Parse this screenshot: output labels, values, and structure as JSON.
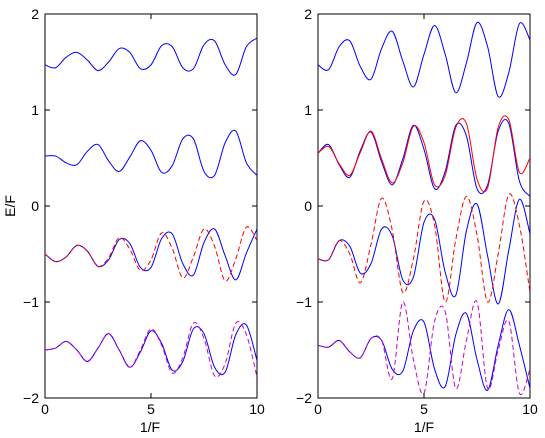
{
  "chart_data": [
    {
      "type": "line",
      "panel": "left",
      "title": "",
      "xlabel": "1/F",
      "ylabel": "E/F",
      "xlim": [
        0,
        10
      ],
      "ylim": [
        -2,
        2
      ],
      "xticks": [
        0,
        5,
        10
      ],
      "xtick_labels": [
        "0",
        "5",
        "10"
      ],
      "yticks": [
        -2,
        -1,
        0,
        1,
        2
      ],
      "ytick_labels": [
        "−2",
        "−1",
        "0",
        "1",
        "2"
      ],
      "grid": false,
      "legend": "none",
      "series": [
        {
          "style": "solid",
          "color": "#0000ff",
          "x": [
            0,
            0.5,
            1,
            1.5,
            2,
            2.5,
            3,
            3.5,
            4,
            4.5,
            5,
            5.5,
            6,
            6.5,
            7,
            7.5,
            8,
            8.5,
            9,
            9.5,
            10
          ],
          "y": [
            1.47,
            1.44,
            1.55,
            1.6,
            1.52,
            1.41,
            1.5,
            1.64,
            1.6,
            1.43,
            1.47,
            1.67,
            1.66,
            1.44,
            1.43,
            1.68,
            1.72,
            1.47,
            1.37,
            1.66,
            1.75
          ]
        },
        {
          "style": "solid",
          "color": "#0000ff",
          "x": [
            0,
            0.5,
            1,
            1.5,
            2,
            2.5,
            3,
            3.5,
            4,
            4.5,
            5,
            5.5,
            6,
            6.5,
            7,
            7.5,
            8,
            8.5,
            9,
            9.5,
            10
          ],
          "y": [
            0.52,
            0.52,
            0.45,
            0.43,
            0.57,
            0.64,
            0.47,
            0.36,
            0.51,
            0.68,
            0.58,
            0.35,
            0.42,
            0.7,
            0.7,
            0.36,
            0.32,
            0.66,
            0.78,
            0.45,
            0.32
          ]
        },
        {
          "style": "solid",
          "color": "#0000ff",
          "x": [
            0,
            0.5,
            1,
            1.5,
            2,
            2.5,
            3,
            3.5,
            4,
            4.5,
            5,
            5.5,
            6,
            6.5,
            7,
            7.5,
            8,
            8.5,
            9,
            9.5,
            10
          ],
          "y": [
            -0.5,
            -0.58,
            -0.53,
            -0.41,
            -0.47,
            -0.63,
            -0.56,
            -0.35,
            -0.39,
            -0.64,
            -0.64,
            -0.34,
            -0.29,
            -0.6,
            -0.72,
            -0.38,
            -0.24,
            -0.52,
            -0.77,
            -0.49,
            -0.24
          ]
        },
        {
          "style": "dashed",
          "color": "#ff0000",
          "x": [
            0,
            0.5,
            1,
            1.5,
            2,
            2.5,
            3,
            3.5,
            4,
            4.5,
            5,
            5.5,
            6,
            6.5,
            7,
            7.5,
            8,
            8.5,
            9,
            9.5,
            10
          ],
          "y": [
            -0.5,
            -0.58,
            -0.53,
            -0.41,
            -0.47,
            -0.63,
            -0.54,
            -0.33,
            -0.45,
            -0.67,
            -0.56,
            -0.28,
            -0.44,
            -0.75,
            -0.53,
            -0.24,
            -0.42,
            -0.78,
            -0.55,
            -0.22,
            -0.36
          ]
        },
        {
          "style": "solid",
          "color": "#0000ff",
          "x": [
            0,
            0.5,
            1,
            1.5,
            2,
            2.5,
            3,
            3.5,
            4,
            4.5,
            5,
            5.5,
            6,
            6.5,
            7,
            7.5,
            8,
            8.5,
            9,
            9.5,
            10
          ],
          "y": [
            -1.5,
            -1.48,
            -1.41,
            -1.5,
            -1.62,
            -1.48,
            -1.33,
            -1.5,
            -1.68,
            -1.52,
            -1.3,
            -1.43,
            -1.71,
            -1.62,
            -1.28,
            -1.33,
            -1.68,
            -1.73,
            -1.34,
            -1.24,
            -1.61
          ]
        },
        {
          "style": "dashed",
          "color": "#cc00cc",
          "x": [
            0,
            0.5,
            1,
            1.5,
            2,
            2.5,
            3,
            3.5,
            4,
            4.5,
            5,
            5.5,
            6,
            6.5,
            7,
            7.5,
            8,
            8.5,
            9,
            9.5,
            10
          ],
          "y": [
            -1.5,
            -1.48,
            -1.41,
            -1.5,
            -1.62,
            -1.48,
            -1.33,
            -1.5,
            -1.68,
            -1.5,
            -1.28,
            -1.45,
            -1.74,
            -1.58,
            -1.22,
            -1.38,
            -1.77,
            -1.64,
            -1.22,
            -1.34,
            -1.78
          ]
        }
      ]
    },
    {
      "type": "line",
      "panel": "right",
      "title": "",
      "xlabel": "1/F",
      "ylabel": "",
      "xlim": [
        0,
        10
      ],
      "ylim": [
        -2,
        2
      ],
      "xticks": [
        0,
        5,
        10
      ],
      "xtick_labels": [
        "0",
        "5",
        "10"
      ],
      "yticks": [
        -2,
        -1,
        0,
        1,
        2
      ],
      "ytick_labels": [
        "−2",
        "−1",
        "0",
        "1",
        "2"
      ],
      "grid": false,
      "legend": "none",
      "series": [
        {
          "style": "solid",
          "color": "#0000ff",
          "x": [
            0,
            0.5,
            1,
            1.5,
            2,
            2.5,
            3,
            3.5,
            4,
            4.5,
            5,
            5.5,
            6,
            6.5,
            7,
            7.5,
            8,
            8.5,
            9,
            9.5,
            10
          ],
          "y": [
            1.47,
            1.42,
            1.66,
            1.72,
            1.45,
            1.32,
            1.64,
            1.82,
            1.51,
            1.24,
            1.58,
            1.88,
            1.58,
            1.18,
            1.49,
            1.91,
            1.66,
            1.14,
            1.39,
            1.9,
            1.73
          ]
        },
        {
          "style": "solid",
          "color": "#0000ff",
          "x": [
            0,
            0.5,
            1,
            1.5,
            2,
            2.5,
            3,
            3.5,
            4,
            4.5,
            5,
            5.5,
            6,
            6.5,
            7,
            7.5,
            8,
            8.5,
            9,
            9.5,
            10
          ],
          "y": [
            0.55,
            0.64,
            0.43,
            0.3,
            0.58,
            0.77,
            0.46,
            0.22,
            0.49,
            0.84,
            0.59,
            0.18,
            0.36,
            0.84,
            0.73,
            0.18,
            0.22,
            0.78,
            0.86,
            0.26,
            0.1
          ]
        },
        {
          "style": "solid",
          "color": "#ff0000",
          "x": [
            0,
            0.5,
            1,
            1.5,
            2,
            2.5,
            3,
            3.5,
            4,
            4.5,
            5,
            5.5,
            6,
            6.5,
            7,
            7.5,
            8,
            8.5,
            9,
            9.5,
            10
          ],
          "y": [
            0.55,
            0.62,
            0.44,
            0.32,
            0.56,
            0.78,
            0.49,
            0.24,
            0.45,
            0.83,
            0.66,
            0.22,
            0.32,
            0.82,
            0.86,
            0.28,
            0.19,
            0.82,
            0.9,
            0.35,
            0.5
          ]
        },
        {
          "style": "solid",
          "color": "#0000ff",
          "x": [
            0,
            0.5,
            1,
            1.5,
            2,
            2.5,
            3,
            3.5,
            4,
            4.5,
            5,
            5.5,
            6,
            6.5,
            7,
            7.5,
            8,
            8.5,
            9,
            9.5,
            10
          ],
          "y": [
            -0.55,
            -0.56,
            -0.36,
            -0.42,
            -0.7,
            -0.6,
            -0.24,
            -0.31,
            -0.77,
            -0.74,
            -0.17,
            -0.14,
            -0.69,
            -0.93,
            -0.26,
            0.02,
            -0.52,
            -1.02,
            -0.46,
            0.07,
            -0.29
          ]
        },
        {
          "style": "dashed",
          "color": "#ff0000",
          "x": [
            0,
            0.5,
            1,
            1.5,
            2,
            2.5,
            3,
            3.5,
            4,
            4.5,
            5,
            5.5,
            6,
            6.5,
            7,
            7.5,
            8,
            8.5,
            9,
            9.5,
            10
          ],
          "y": [
            -0.55,
            -0.56,
            -0.36,
            -0.5,
            -0.8,
            -0.4,
            0.08,
            -0.25,
            -0.9,
            -0.55,
            0.05,
            -0.2,
            -1.0,
            -0.35,
            0.1,
            -0.3,
            -1.0,
            -0.5,
            0.12,
            -0.2,
            -0.9
          ]
        },
        {
          "style": "solid",
          "color": "#0000ff",
          "x": [
            0,
            0.5,
            1,
            1.5,
            2,
            2.5,
            3,
            3.5,
            4,
            4.5,
            5,
            5.5,
            6,
            6.5,
            7,
            7.5,
            8,
            8.5,
            9,
            9.5,
            10
          ],
          "y": [
            -1.45,
            -1.47,
            -1.4,
            -1.52,
            -1.58,
            -1.38,
            -1.4,
            -1.7,
            -1.72,
            -1.3,
            -1.21,
            -1.7,
            -1.88,
            -1.34,
            -1.12,
            -1.6,
            -1.92,
            -1.45,
            -1.08,
            -1.45,
            -1.9
          ]
        },
        {
          "style": "dashed",
          "color": "#cc00cc",
          "x": [
            0,
            0.5,
            1,
            1.5,
            2,
            2.5,
            3,
            3.5,
            4,
            4.5,
            5,
            5.5,
            6,
            6.5,
            7,
            7.5,
            8,
            8.5,
            9,
            9.5,
            10
          ],
          "y": [
            -1.45,
            -1.47,
            -1.4,
            -1.52,
            -1.58,
            -1.38,
            -1.4,
            -1.8,
            -1.0,
            -1.6,
            -1.95,
            -1.2,
            -1.1,
            -1.9,
            -1.4,
            -1.0,
            -1.9,
            -1.5,
            -1.2,
            -1.95,
            -1.7
          ]
        }
      ]
    }
  ]
}
